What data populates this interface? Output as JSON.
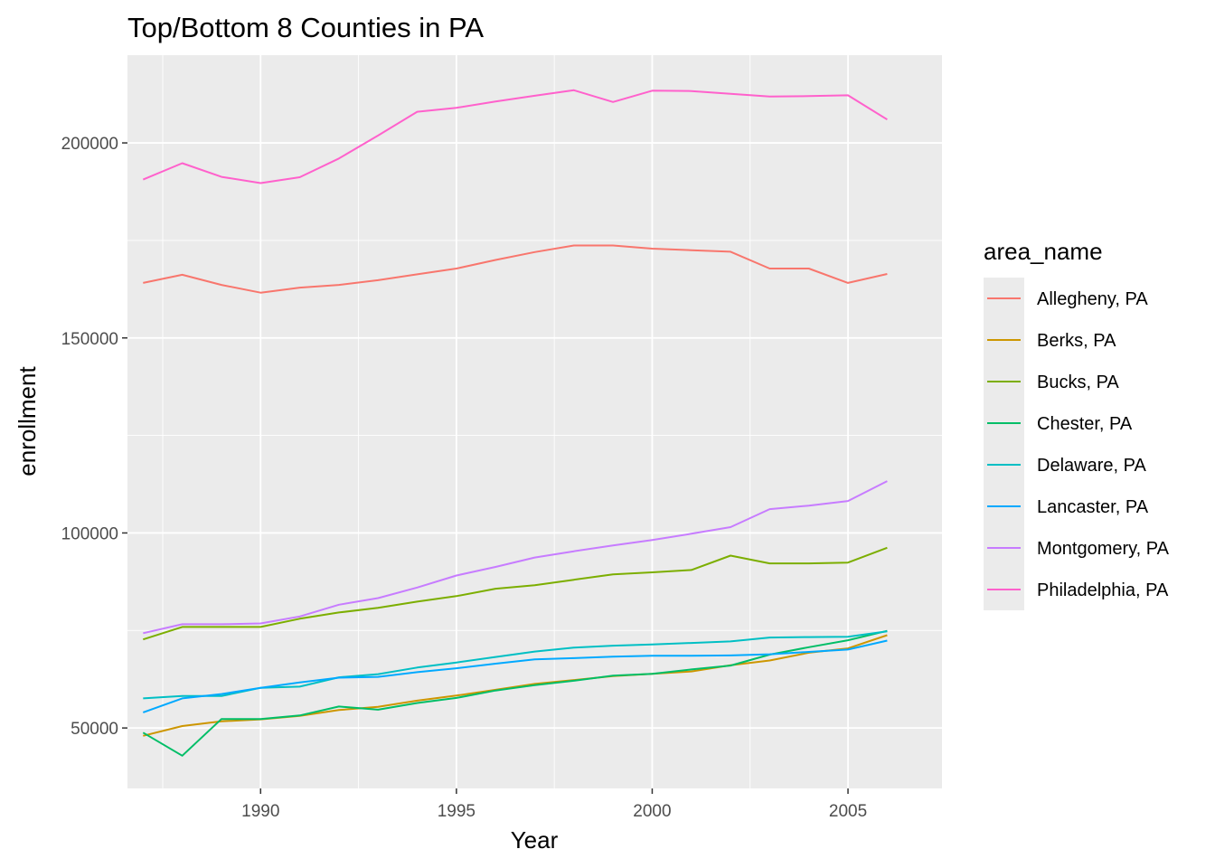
{
  "chart_data": {
    "type": "line",
    "title": "Top/Bottom 8 Counties in PA",
    "xlabel": "Year",
    "ylabel": "enrollment",
    "xlim": [
      1986.6,
      2007.4
    ],
    "ylim": [
      34500,
      222500
    ],
    "x_ticks": [
      1990,
      1995,
      2000,
      2005
    ],
    "y_ticks": [
      50000,
      100000,
      150000,
      200000
    ],
    "x_tick_labels": [
      "1990",
      "1995",
      "2000",
      "2005"
    ],
    "y_tick_labels": [
      "50000",
      "100000",
      "150000",
      "200000"
    ],
    "grid": true,
    "legend_position": "right",
    "legend_title": "area_name",
    "x": [
      1987,
      1988,
      1989,
      1990,
      1991,
      1992,
      1993,
      1994,
      1995,
      1996,
      1997,
      1998,
      1999,
      2000,
      2001,
      2002,
      2003,
      2004,
      2005,
      2006
    ],
    "series": [
      {
        "name": "Allegheny, PA",
        "color": "#F8766D",
        "values": [
          164100,
          166200,
          163600,
          161600,
          162900,
          163600,
          164800,
          166300,
          167800,
          170000,
          172000,
          173700,
          173700,
          172900,
          172500,
          172100,
          167800,
          167800,
          164100,
          166400
        ]
      },
      {
        "name": "Berks, PA",
        "color": "#CD9600",
        "values": [
          48000,
          50500,
          51700,
          52200,
          53100,
          54600,
          55400,
          57000,
          58300,
          59800,
          61300,
          62300,
          63300,
          63900,
          64500,
          66100,
          67300,
          69300,
          70400,
          73800
        ]
      },
      {
        "name": "Bucks, PA",
        "color": "#7CAE00",
        "values": [
          72700,
          75900,
          75900,
          75900,
          78000,
          79600,
          80800,
          82400,
          83800,
          85700,
          86600,
          88000,
          89400,
          89900,
          90500,
          94200,
          92200,
          92200,
          92400,
          96200
        ]
      },
      {
        "name": "Chester, PA",
        "color": "#00BE67",
        "values": [
          48800,
          42900,
          52300,
          52300,
          53200,
          55500,
          54700,
          56400,
          57700,
          59600,
          61000,
          62100,
          63400,
          63900,
          65000,
          66000,
          68800,
          70700,
          72500,
          74900
        ]
      },
      {
        "name": "Delaware, PA",
        "color": "#00BFC4",
        "values": [
          57600,
          58200,
          58200,
          60300,
          60600,
          63000,
          63800,
          65500,
          66800,
          68200,
          69600,
          70600,
          71100,
          71400,
          71800,
          72200,
          73200,
          73300,
          73400,
          74800
        ]
      },
      {
        "name": "Lancaster, PA",
        "color": "#00A9FF",
        "values": [
          54000,
          57600,
          58700,
          60300,
          61700,
          62900,
          63100,
          64300,
          65300,
          66500,
          67600,
          67900,
          68300,
          68500,
          68500,
          68600,
          68900,
          69500,
          70100,
          72400
        ]
      },
      {
        "name": "Montgomery, PA",
        "color": "#C77CFF",
        "values": [
          74300,
          76600,
          76600,
          76800,
          78600,
          81600,
          83300,
          86000,
          89100,
          91300,
          93700,
          95300,
          96800,
          98200,
          99800,
          101500,
          106100,
          107000,
          108200,
          113300
        ]
      },
      {
        "name": "Philadelphia, PA",
        "color": "#FF61CC",
        "values": [
          190600,
          194800,
          191300,
          189700,
          191200,
          196000,
          201900,
          208000,
          209000,
          210600,
          212100,
          213500,
          210500,
          213400,
          213300,
          212600,
          211900,
          212000,
          212200,
          206000
        ]
      }
    ]
  }
}
